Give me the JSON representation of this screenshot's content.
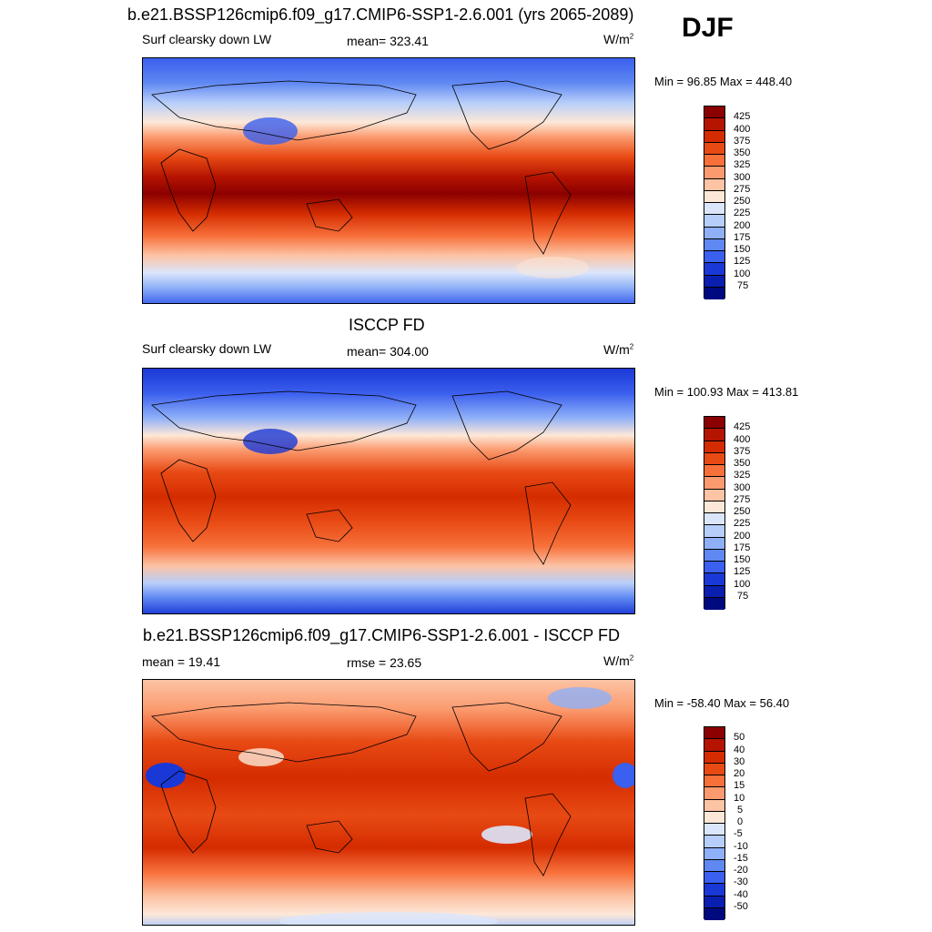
{
  "season": "DJF",
  "panels": [
    {
      "title": "b.e21.BSSP126cmip6.f09_g17.CMIP6-SSP1-2.6.001 (yrs 2065-2089)",
      "left_label": "Surf clearsky down LW",
      "center_label": "mean= 323.41",
      "units": "W/m",
      "units_sup": "2",
      "minmax": "Min =  96.85 Max = 448.40"
    },
    {
      "title": "ISCCP FD",
      "left_label": "Surf clearsky down LW",
      "center_label": "mean= 304.00",
      "units": "W/m",
      "units_sup": "2",
      "minmax": "Min = 100.93 Max = 413.81"
    },
    {
      "title": "b.e21.BSSP126cmip6.f09_g17.CMIP6-SSP1-2.6.001 - ISCCP FD",
      "left_label": "mean =  19.41",
      "center_label": "rmse =  23.65",
      "units": "W/m",
      "units_sup": "2",
      "minmax": "Min = -58.40 Max =  56.40"
    }
  ],
  "colorbars": [
    {
      "levels": [
        "425",
        "400",
        "375",
        "350",
        "325",
        "300",
        "275",
        "250",
        "225",
        "200",
        "175",
        "150",
        "125",
        "100",
        "75"
      ],
      "colors": [
        "#8b0000",
        "#b51400",
        "#d42c00",
        "#e84a14",
        "#f7703a",
        "#fb9a6e",
        "#fcc3a4",
        "#fde8d8",
        "#dbe6fb",
        "#b7cefa",
        "#8fb0f8",
        "#5f88f2",
        "#3b5fee",
        "#1a38d6",
        "#0a1eb0",
        "#000a80"
      ]
    },
    {
      "levels": [
        "425",
        "400",
        "375",
        "350",
        "325",
        "300",
        "275",
        "250",
        "225",
        "200",
        "175",
        "150",
        "125",
        "100",
        "75"
      ],
      "colors": [
        "#8b0000",
        "#b51400",
        "#d42c00",
        "#e84a14",
        "#f7703a",
        "#fb9a6e",
        "#fcc3a4",
        "#fde8d8",
        "#dbe6fb",
        "#b7cefa",
        "#8fb0f8",
        "#5f88f2",
        "#3b5fee",
        "#1a38d6",
        "#0a1eb0",
        "#000a80"
      ]
    },
    {
      "levels": [
        "50",
        "40",
        "30",
        "20",
        "15",
        "10",
        "5",
        "0",
        "-5",
        "-10",
        "-15",
        "-20",
        "-30",
        "-40",
        "-50"
      ],
      "colors": [
        "#8b0000",
        "#b51400",
        "#d42c00",
        "#e84a14",
        "#f7703a",
        "#fb9a6e",
        "#fcc3a4",
        "#fde8d8",
        "#dbe6fb",
        "#b7cefa",
        "#8fb0f8",
        "#5f88f2",
        "#3b5fee",
        "#1a38d6",
        "#0a1eb0",
        "#000a80"
      ]
    }
  ]
}
